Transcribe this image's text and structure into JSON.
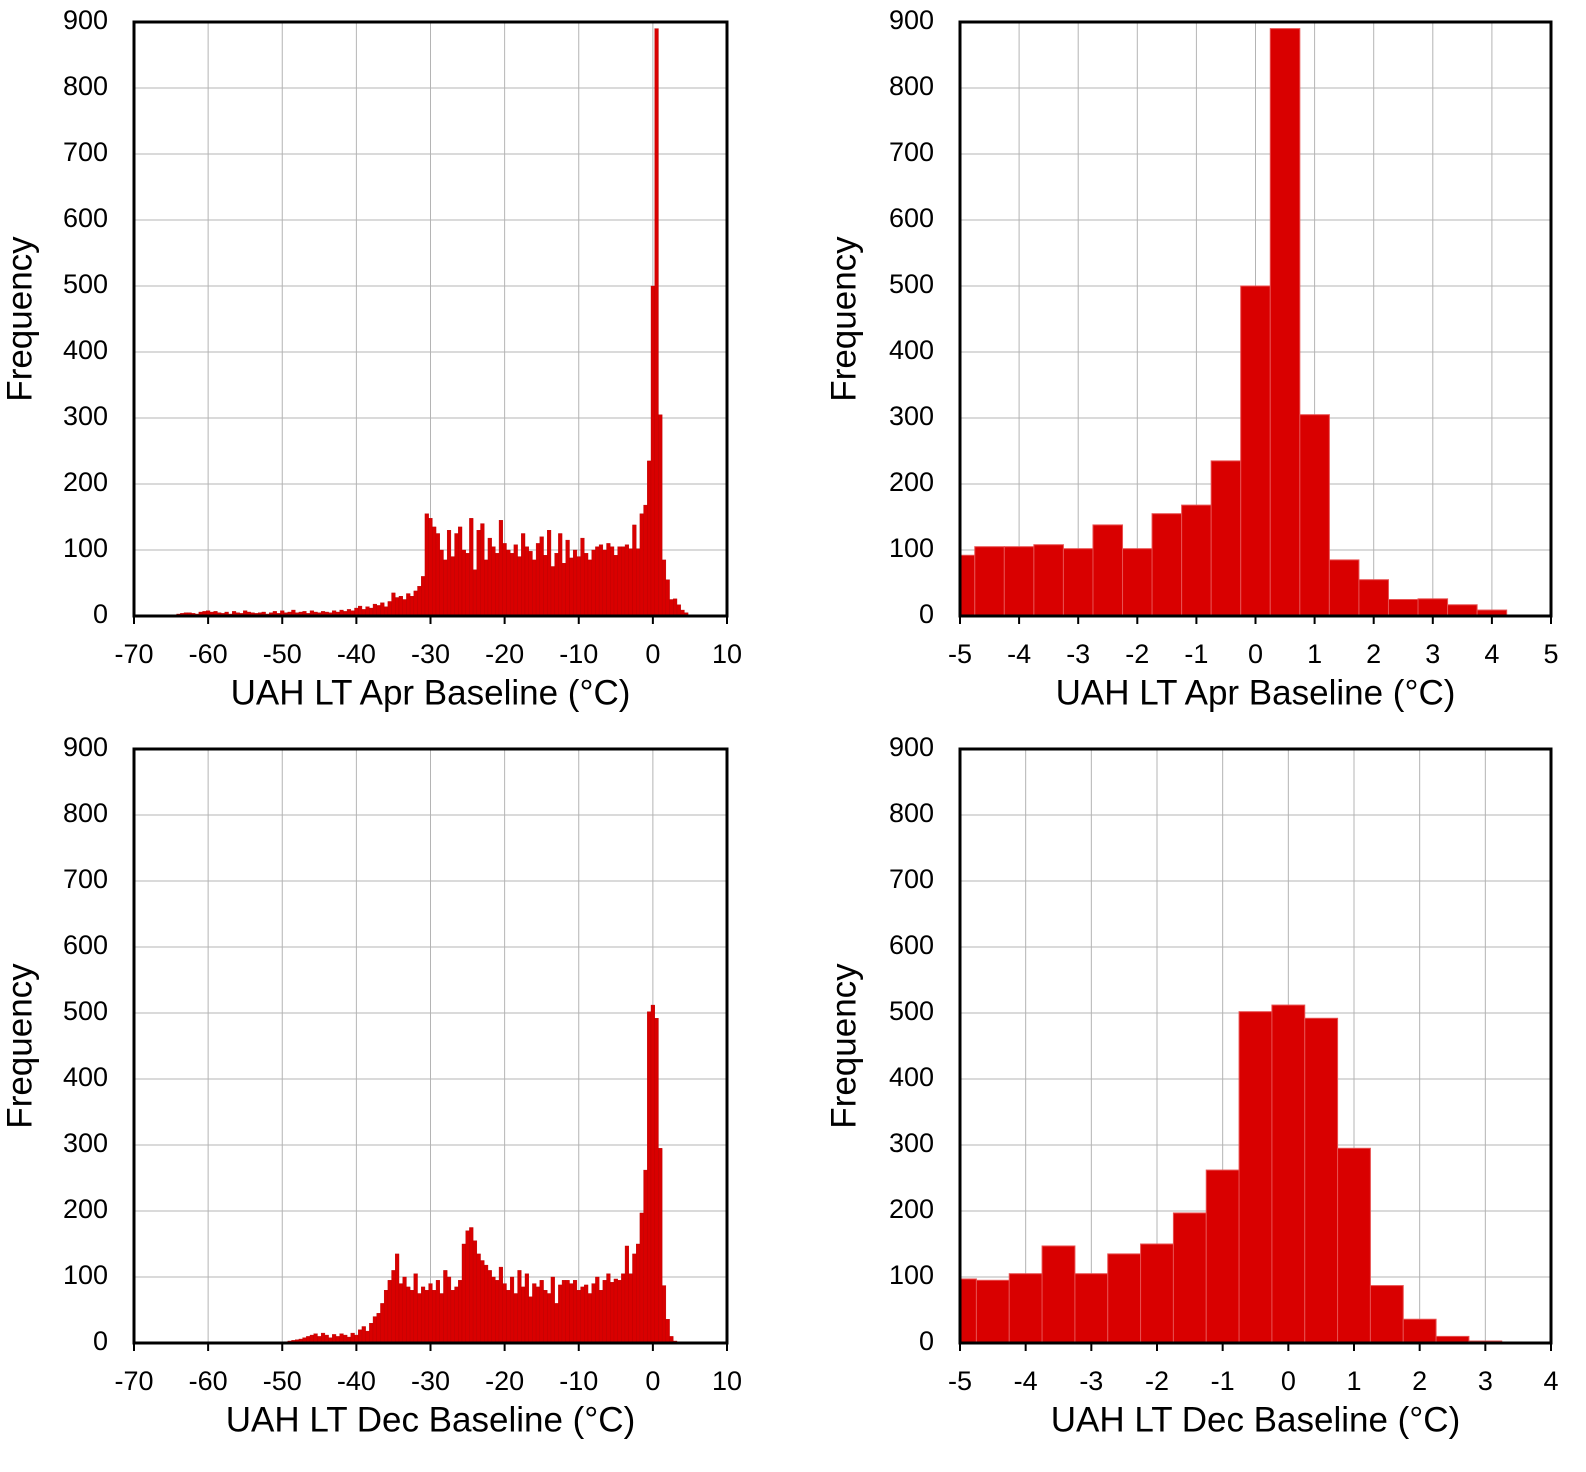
{
  "chart_data": [
    {
      "type": "histogram",
      "xlabel": "UAH LT Apr Baseline (°C)",
      "ylabel": "Frequency",
      "color": "#d90000",
      "grid": true,
      "xlim": [
        -70,
        10
      ],
      "ylim": [
        0,
        900
      ],
      "xticks": [
        -70,
        -60,
        -50,
        -40,
        -30,
        -20,
        -10,
        0,
        10
      ],
      "yticks": [
        0,
        100,
        200,
        300,
        400,
        500,
        600,
        700,
        800,
        900
      ],
      "bins": [
        -64.25,
        -63.75,
        -63.25,
        -62.75,
        -62.25,
        -61.75,
        -61.25,
        -60.75,
        -60.25,
        -59.75,
        -59.25,
        -58.75,
        -58.25,
        -57.75,
        -57.25,
        -56.75,
        -56.25,
        -55.75,
        -55.25,
        -54.75,
        -54.25,
        -53.75,
        -53.25,
        -52.75,
        -52.25,
        -51.75,
        -51.25,
        -50.75,
        -50.25,
        -49.75,
        -49.25,
        -48.75,
        -48.25,
        -47.75,
        -47.25,
        -46.75,
        -46.25,
        -45.75,
        -45.25,
        -44.75,
        -44.25,
        -43.75,
        -43.25,
        -42.75,
        -42.25,
        -41.75,
        -41.25,
        -40.75,
        -40.25,
        -39.75,
        -39.25,
        -38.75,
        -38.25,
        -37.75,
        -37.25,
        -36.75,
        -36.25,
        -35.75,
        -35.25,
        -34.75,
        -34.25,
        -33.75,
        -33.25,
        -32.75,
        -32.25,
        -31.75,
        -31.25,
        -30.75,
        -30.25,
        -29.75,
        -29.25,
        -28.75,
        -28.25,
        -27.75,
        -27.25,
        -26.75,
        -26.25,
        -25.75,
        -25.25,
        -24.75,
        -24.25,
        -23.75,
        -23.25,
        -22.75,
        -22.25,
        -21.75,
        -21.25,
        -20.75,
        -20.25,
        -19.75,
        -19.25,
        -18.75,
        -18.25,
        -17.75,
        -17.25,
        -16.75,
        -16.25,
        -15.75,
        -15.25,
        -14.75,
        -14.25,
        -13.75,
        -13.25,
        -12.75,
        -12.25,
        -11.75,
        -11.25,
        -10.75,
        -10.25,
        -9.75,
        -9.25,
        -8.75,
        -8.25,
        -7.75,
        -7.25,
        -6.75,
        -6.25,
        -5.75,
        -5.25,
        -4.75,
        -4.25,
        -3.75,
        -3.25,
        -2.75,
        -2.25,
        -1.75,
        -1.25,
        -0.75,
        -0.25,
        0.25,
        0.75,
        1.25,
        1.75,
        2.25,
        2.75,
        3.25,
        3.75,
        4.25,
        4.75
      ],
      "values": [
        3,
        4,
        5,
        5,
        4,
        3,
        6,
        7,
        8,
        6,
        7,
        5,
        4,
        6,
        3,
        7,
        5,
        4,
        8,
        6,
        5,
        4,
        5,
        6,
        3,
        5,
        7,
        4,
        8,
        5,
        6,
        9,
        5,
        6,
        7,
        4,
        8,
        6,
        5,
        7,
        6,
        5,
        8,
        6,
        9,
        7,
        10,
        8,
        12,
        15,
        10,
        14,
        12,
        18,
        16,
        20,
        14,
        22,
        35,
        28,
        30,
        25,
        34,
        30,
        38,
        45,
        60,
        155,
        148,
        135,
        125,
        100,
        85,
        130,
        90,
        125,
        135,
        100,
        95,
        148,
        70,
        130,
        140,
        85,
        118,
        105,
        95,
        145,
        110,
        100,
        95,
        108,
        90,
        125,
        105,
        98,
        85,
        110,
        120,
        92,
        130,
        75,
        95,
        125,
        80,
        115,
        88,
        100,
        90,
        118,
        95,
        85,
        100,
        105,
        108,
        100,
        110,
        105,
        92,
        105,
        105,
        108,
        102,
        138,
        102,
        155,
        168,
        235,
        500,
        890,
        305,
        85,
        55,
        25,
        26,
        17,
        9,
        5
      ]
    },
    {
      "type": "histogram",
      "xlabel": "UAH LT Apr Baseline (°C)",
      "ylabel": "Frequency",
      "color": "#d90000",
      "grid": true,
      "xlim": [
        -5,
        5
      ],
      "ylim": [
        0,
        900
      ],
      "xticks": [
        -5,
        -4,
        -3,
        -2,
        -1,
        0,
        1,
        2,
        3,
        4,
        5
      ],
      "yticks": [
        0,
        100,
        200,
        300,
        400,
        500,
        600,
        700,
        800,
        900
      ],
      "bins": [
        -5.25,
        -4.75,
        -4.25,
        -3.75,
        -3.25,
        -2.75,
        -2.25,
        -1.75,
        -1.25,
        -0.75,
        -0.25,
        0.25,
        0.75,
        1.25,
        1.75,
        2.25,
        2.75,
        3.25,
        3.75,
        4.25
      ],
      "values": [
        92,
        105,
        105,
        108,
        102,
        138,
        102,
        155,
        168,
        235,
        500,
        890,
        305,
        85,
        55,
        25,
        26,
        17,
        9
      ]
    },
    {
      "type": "histogram",
      "xlabel": "UAH LT Dec Baseline (°C)",
      "ylabel": "Frequency",
      "color": "#d90000",
      "grid": true,
      "xlim": [
        -70,
        10
      ],
      "ylim": [
        0,
        900
      ],
      "xticks": [
        -70,
        -60,
        -50,
        -40,
        -30,
        -20,
        -10,
        0,
        10
      ],
      "yticks": [
        0,
        100,
        200,
        300,
        400,
        500,
        600,
        700,
        800,
        900
      ],
      "bins": [
        -50.25,
        -49.75,
        -49.25,
        -48.75,
        -48.25,
        -47.75,
        -47.25,
        -46.75,
        -46.25,
        -45.75,
        -45.25,
        -44.75,
        -44.25,
        -43.75,
        -43.25,
        -42.75,
        -42.25,
        -41.75,
        -41.25,
        -40.75,
        -40.25,
        -39.75,
        -39.25,
        -38.75,
        -38.25,
        -37.75,
        -37.25,
        -36.75,
        -36.25,
        -35.75,
        -35.25,
        -34.75,
        -34.25,
        -33.75,
        -33.25,
        -32.75,
        -32.25,
        -31.75,
        -31.25,
        -30.75,
        -30.25,
        -29.75,
        -29.25,
        -28.75,
        -28.25,
        -27.75,
        -27.25,
        -26.75,
        -26.25,
        -25.75,
        -25.25,
        -24.75,
        -24.25,
        -23.75,
        -23.25,
        -22.75,
        -22.25,
        -21.75,
        -21.25,
        -20.75,
        -20.25,
        -19.75,
        -19.25,
        -18.75,
        -18.25,
        -17.75,
        -17.25,
        -16.75,
        -16.25,
        -15.75,
        -15.25,
        -14.75,
        -14.25,
        -13.75,
        -13.25,
        -12.75,
        -12.25,
        -11.75,
        -11.25,
        -10.75,
        -10.25,
        -9.75,
        -9.25,
        -8.75,
        -8.25,
        -7.75,
        -7.25,
        -6.75,
        -6.25,
        -5.75,
        -5.25,
        -4.75,
        -4.25,
        -3.75,
        -3.25,
        -2.75,
        -2.25,
        -1.75,
        -1.25,
        -0.75,
        -0.25,
        0.25,
        0.75,
        1.25,
        1.75,
        2.25,
        2.75,
        3.25
      ],
      "values": [
        1,
        2,
        3,
        4,
        5,
        6,
        8,
        10,
        12,
        14,
        10,
        15,
        12,
        8,
        13,
        10,
        14,
        12,
        9,
        15,
        12,
        20,
        25,
        18,
        30,
        40,
        45,
        60,
        80,
        95,
        110,
        135,
        90,
        100,
        85,
        80,
        105,
        75,
        85,
        80,
        90,
        80,
        95,
        75,
        110,
        100,
        80,
        85,
        95,
        150,
        170,
        175,
        155,
        135,
        125,
        118,
        110,
        100,
        95,
        115,
        90,
        80,
        100,
        75,
        110,
        85,
        105,
        70,
        90,
        85,
        95,
        80,
        75,
        100,
        60,
        88,
        95,
        95,
        90,
        95,
        80,
        85,
        88,
        75,
        90,
        100,
        80,
        95,
        105,
        92,
        97,
        95,
        105,
        147,
        105,
        135,
        150,
        197,
        262,
        502,
        512,
        492,
        295,
        87,
        36,
        10,
        3
      ]
    },
    {
      "type": "histogram",
      "xlabel": "UAH LT Dec Baseline (°C)",
      "ylabel": "Frequency",
      "color": "#d90000",
      "grid": true,
      "xlim": [
        -5,
        4
      ],
      "ylim": [
        0,
        900
      ],
      "xticks": [
        -5,
        -4,
        -3,
        -2,
        -1,
        0,
        1,
        2,
        3,
        4
      ],
      "yticks": [
        0,
        100,
        200,
        300,
        400,
        500,
        600,
        700,
        800,
        900
      ],
      "bins": [
        -5.25,
        -4.75,
        -4.25,
        -3.75,
        -3.25,
        -2.75,
        -2.25,
        -1.75,
        -1.25,
        -0.75,
        -0.25,
        0.25,
        0.75,
        1.25,
        1.75,
        2.25,
        2.75,
        3.25
      ],
      "values": [
        97,
        95,
        105,
        147,
        105,
        135,
        150,
        197,
        262,
        502,
        512,
        492,
        295,
        87,
        36,
        10,
        3
      ]
    }
  ]
}
